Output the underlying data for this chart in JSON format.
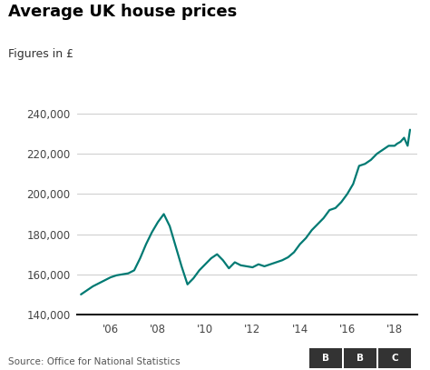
{
  "title": "Average UK house prices",
  "subtitle": "Figures in £",
  "line_color": "#007a73",
  "line_width": 1.6,
  "background_color": "#ffffff",
  "source": "Source: Office for National Statistics",
  "ylim": [
    140000,
    245000
  ],
  "yticks": [
    140000,
    160000,
    180000,
    200000,
    220000,
    240000
  ],
  "xtick_labels": [
    "'06",
    "'08",
    "'10",
    "'12",
    "'14",
    "'16",
    "'18"
  ],
  "xtick_positions": [
    2006,
    2008,
    2010,
    2012,
    2014,
    2016,
    2018
  ],
  "xlim": [
    2004.6,
    2018.95
  ],
  "grid_color": "#cccccc",
  "bottom_spine_color": "#1a1a1a",
  "time_series": [
    [
      2004.75,
      150000
    ],
    [
      2005.0,
      152000
    ],
    [
      2005.25,
      154000
    ],
    [
      2005.5,
      155500
    ],
    [
      2005.75,
      157000
    ],
    [
      2006.0,
      158500
    ],
    [
      2006.25,
      159500
    ],
    [
      2006.5,
      160000
    ],
    [
      2006.75,
      160500
    ],
    [
      2007.0,
      162000
    ],
    [
      2007.25,
      168000
    ],
    [
      2007.5,
      175000
    ],
    [
      2007.75,
      181000
    ],
    [
      2008.0,
      186000
    ],
    [
      2008.25,
      190000
    ],
    [
      2008.5,
      184000
    ],
    [
      2008.75,
      174000
    ],
    [
      2009.0,
      164000
    ],
    [
      2009.25,
      155000
    ],
    [
      2009.5,
      158000
    ],
    [
      2009.75,
      162000
    ],
    [
      2010.0,
      165000
    ],
    [
      2010.25,
      168000
    ],
    [
      2010.5,
      170000
    ],
    [
      2010.75,
      167000
    ],
    [
      2011.0,
      163000
    ],
    [
      2011.25,
      166000
    ],
    [
      2011.5,
      164500
    ],
    [
      2011.75,
      164000
    ],
    [
      2012.0,
      163500
    ],
    [
      2012.25,
      165000
    ],
    [
      2012.5,
      164000
    ],
    [
      2012.75,
      165000
    ],
    [
      2013.0,
      166000
    ],
    [
      2013.25,
      167000
    ],
    [
      2013.5,
      168500
    ],
    [
      2013.75,
      171000
    ],
    [
      2014.0,
      175000
    ],
    [
      2014.25,
      178000
    ],
    [
      2014.5,
      182000
    ],
    [
      2014.75,
      185000
    ],
    [
      2015.0,
      188000
    ],
    [
      2015.25,
      192000
    ],
    [
      2015.5,
      193000
    ],
    [
      2015.75,
      196000
    ],
    [
      2016.0,
      200000
    ],
    [
      2016.25,
      205000
    ],
    [
      2016.5,
      214000
    ],
    [
      2016.75,
      215000
    ],
    [
      2017.0,
      217000
    ],
    [
      2017.25,
      220000
    ],
    [
      2017.5,
      222000
    ],
    [
      2017.75,
      224000
    ],
    [
      2018.0,
      224000
    ],
    [
      2018.1,
      225000
    ],
    [
      2018.25,
      226000
    ],
    [
      2018.4,
      228000
    ],
    [
      2018.55,
      224000
    ],
    [
      2018.65,
      232000
    ]
  ]
}
